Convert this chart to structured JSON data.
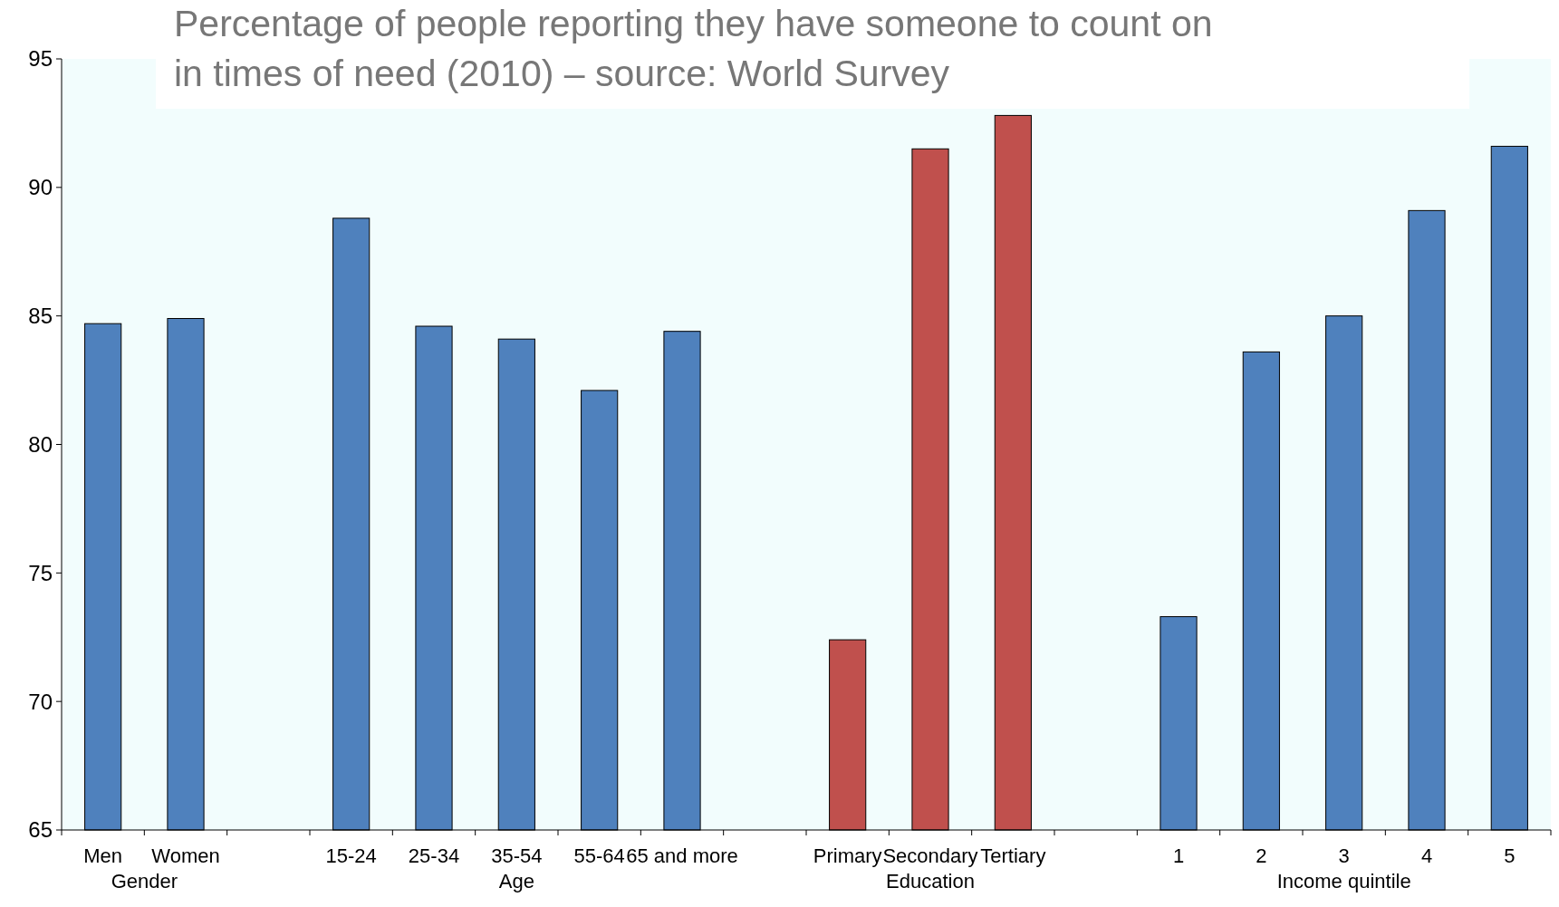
{
  "chart_data": {
    "type": "bar",
    "title": "Percentage of people reporting they have someone to count on in times of need (2010) – source: World Survey",
    "categories": [
      "Men",
      "Women",
      null,
      "15-24",
      "25-34",
      "35-54",
      "55-64",
      "65 and more",
      null,
      "Primary",
      "Secondary",
      "Tertiary",
      null,
      "1",
      "2",
      "3",
      "4",
      "5"
    ],
    "values": [
      84.7,
      84.9,
      null,
      88.8,
      84.6,
      84.1,
      82.1,
      84.4,
      null,
      72.4,
      91.5,
      92.8,
      null,
      73.3,
      83.6,
      85.0,
      89.1,
      91.6
    ],
    "colors": [
      "#4f81bd",
      "#4f81bd",
      null,
      "#4f81bd",
      "#4f81bd",
      "#4f81bd",
      "#4f81bd",
      "#4f81bd",
      null,
      "#c0504d",
      "#c0504d",
      "#c0504d",
      null,
      "#4f81bd",
      "#4f81bd",
      "#4f81bd",
      "#4f81bd",
      "#4f81bd"
    ],
    "annotations": [
      "Gender",
      "Age",
      "Education",
      "Income quintile"
    ],
    "ylim": [
      65,
      95
    ],
    "yticks": [
      65,
      70,
      75,
      80,
      85,
      90,
      95
    ],
    "grid": false
  }
}
